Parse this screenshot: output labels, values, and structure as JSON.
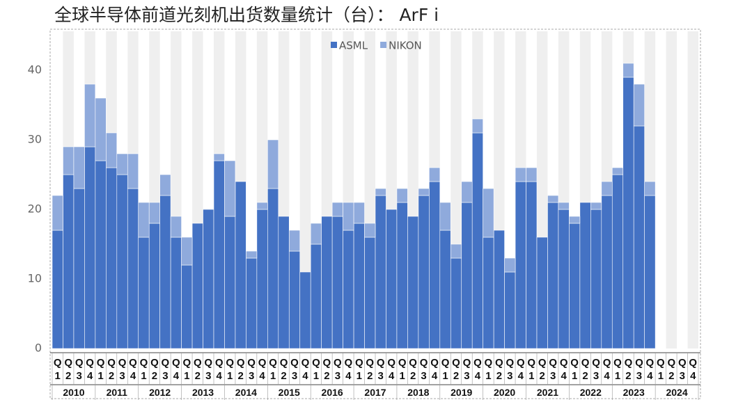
{
  "chart_data": {
    "type": "stacked_bar",
    "title": "全球半导体前道光刻机出货数量统计（台）： ArF i",
    "categories": [
      "Q1",
      "Q2",
      "Q3",
      "Q4",
      "Q1",
      "Q2",
      "Q3",
      "Q4",
      "Q1",
      "Q2",
      "Q3",
      "Q4",
      "Q1",
      "Q2",
      "Q3",
      "Q4",
      "Q1",
      "Q2",
      "Q3",
      "Q4",
      "Q1",
      "Q2",
      "Q3",
      "Q4",
      "Q1",
      "Q2",
      "Q3",
      "Q4",
      "Q1",
      "Q2",
      "Q3",
      "Q4",
      "Q1",
      "Q2",
      "Q3",
      "Q4",
      "Q1",
      "Q2",
      "Q3",
      "Q4",
      "Q1",
      "Q2",
      "Q3",
      "Q4",
      "Q1",
      "Q2",
      "Q3",
      "Q4",
      "Q1",
      "Q2",
      "Q3",
      "Q4",
      "Q1",
      "Q2",
      "Q3",
      "Q4",
      "Q1",
      "Q2",
      "Q3",
      "Q4"
    ],
    "years": [
      "2010",
      "2011",
      "2012",
      "2013",
      "2014",
      "2015",
      "2016",
      "2017",
      "2018",
      "2019",
      "2020",
      "2021",
      "2022",
      "2023",
      "2024"
    ],
    "series": [
      {
        "name": "ASML",
        "color": "#4472c4",
        "values": [
          17,
          25,
          23,
          29,
          27,
          26,
          25,
          23,
          16,
          18,
          22,
          16,
          12,
          18,
          20,
          27,
          19,
          24,
          13,
          20,
          23,
          19,
          14,
          11,
          15,
          19,
          19,
          17,
          18,
          16,
          22,
          20,
          21,
          19,
          22,
          24,
          17,
          13,
          21,
          31,
          16,
          17,
          11,
          24,
          24,
          16,
          21,
          20,
          18,
          21,
          20,
          22,
          25,
          39,
          32,
          22,
          null,
          null,
          null,
          null
        ]
      },
      {
        "name": "NIKON",
        "color": "#8faadc",
        "values": [
          5,
          4,
          6,
          9,
          9,
          5,
          3,
          5,
          5,
          3,
          3,
          3,
          4,
          0,
          0,
          1,
          8,
          0,
          1,
          1,
          7,
          0,
          3,
          0,
          3,
          0,
          2,
          4,
          3,
          2,
          1,
          0,
          2,
          0,
          1,
          2,
          4,
          2,
          3,
          2,
          7,
          0,
          2,
          2,
          2,
          0,
          1,
          1,
          1,
          0,
          1,
          2,
          1,
          2,
          6,
          2,
          null,
          null,
          null,
          null
        ]
      }
    ],
    "ylim": [
      0,
      45
    ],
    "yticks": [
      0,
      10,
      20,
      30,
      40
    ],
    "grid": false,
    "legend": "top"
  }
}
